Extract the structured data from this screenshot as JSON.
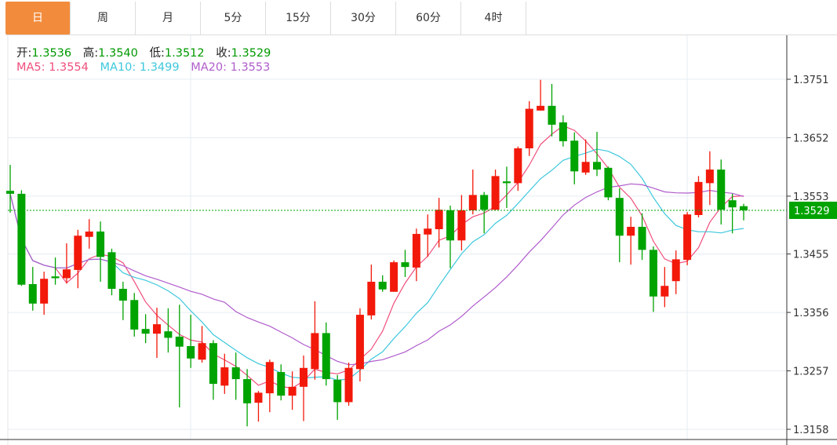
{
  "tabs": [
    {
      "label": "日",
      "active": true
    },
    {
      "label": "周"
    },
    {
      "label": "月"
    },
    {
      "label": "5分"
    },
    {
      "label": "15分"
    },
    {
      "label": "30分"
    },
    {
      "label": "60分"
    },
    {
      "label": "4时"
    }
  ],
  "ohlc_legend": {
    "open_label": "开:",
    "open": "1.3536",
    "high_label": "高:",
    "high": "1.3540",
    "low_label": "低:",
    "low": "1.3512",
    "close_label": "收:",
    "close": "1.3529"
  },
  "ma_legend": {
    "ma5": "MA5: 1.3554",
    "ma10": "MA10: 1.3499",
    "ma20": "MA20: 1.3553"
  },
  "colors": {
    "up": "#f2190a",
    "down": "#00a300",
    "ma5": "#ef4f7d",
    "ma10": "#3ec8dc",
    "ma20": "#b05ccc",
    "accent": "#f28c3c"
  },
  "chart_data": {
    "type": "candlestick",
    "title": "",
    "ylim": [
      1.3158,
      1.3751
    ],
    "y_ticks": [
      "1.3751",
      "1.3652",
      "1.3553",
      "1.3455",
      "1.3356",
      "1.3257",
      "1.3158"
    ],
    "current_price": "1.3529",
    "grid": true,
    "ma_periods": [
      5,
      10,
      20
    ],
    "candles": [
      [
        1.3562,
        1.3606,
        1.3525,
        1.3557
      ],
      [
        1.3557,
        1.3563,
        1.3401,
        1.3403
      ],
      [
        1.3404,
        1.3433,
        1.3359,
        1.3371
      ],
      [
        1.3371,
        1.3425,
        1.3352,
        1.3413
      ],
      [
        1.3417,
        1.3449,
        1.3403,
        1.3414
      ],
      [
        1.3414,
        1.3473,
        1.3405,
        1.3429
      ],
      [
        1.3428,
        1.3496,
        1.3397,
        1.3486
      ],
      [
        1.3484,
        1.3514,
        1.3464,
        1.3493
      ],
      [
        1.3493,
        1.351,
        1.3408,
        1.345
      ],
      [
        1.3458,
        1.3464,
        1.3385,
        1.3396
      ],
      [
        1.3396,
        1.3408,
        1.3343,
        1.3376
      ],
      [
        1.3377,
        1.3389,
        1.3315,
        1.3327
      ],
      [
        1.3328,
        1.3353,
        1.3304,
        1.332
      ],
      [
        1.332,
        1.3364,
        1.3279,
        1.3336
      ],
      [
        1.3324,
        1.3363,
        1.3288,
        1.3313
      ],
      [
        1.3315,
        1.3369,
        1.3195,
        1.3298
      ],
      [
        1.3299,
        1.3352,
        1.3262,
        1.3278
      ],
      [
        1.3276,
        1.3333,
        1.3271,
        1.3304
      ],
      [
        1.3304,
        1.3309,
        1.3208,
        1.3235
      ],
      [
        1.3232,
        1.3286,
        1.3218,
        1.3263
      ],
      [
        1.3263,
        1.3288,
        1.3208,
        1.3243
      ],
      [
        1.3243,
        1.326,
        1.3163,
        1.3202
      ],
      [
        1.3203,
        1.3223,
        1.3171,
        1.322
      ],
      [
        1.3219,
        1.3276,
        1.3187,
        1.3272
      ],
      [
        1.3255,
        1.3268,
        1.3207,
        1.3215
      ],
      [
        1.3215,
        1.3256,
        1.3191,
        1.323
      ],
      [
        1.323,
        1.3283,
        1.3172,
        1.3262
      ],
      [
        1.326,
        1.3375,
        1.3242,
        1.3321
      ],
      [
        1.3321,
        1.3339,
        1.3232,
        1.3243
      ],
      [
        1.3242,
        1.325,
        1.3174,
        1.3204
      ],
      [
        1.3204,
        1.3271,
        1.3198,
        1.3262
      ],
      [
        1.326,
        1.3363,
        1.3239,
        1.3352
      ],
      [
        1.3351,
        1.3437,
        1.3344,
        1.3408
      ],
      [
        1.3408,
        1.3419,
        1.3391,
        1.3395
      ],
      [
        1.3391,
        1.3444,
        1.3391,
        1.3441
      ],
      [
        1.3441,
        1.3462,
        1.3416,
        1.3433
      ],
      [
        1.3432,
        1.3498,
        1.3409,
        1.3489
      ],
      [
        1.3488,
        1.3522,
        1.345,
        1.3498
      ],
      [
        1.3497,
        1.355,
        1.3466,
        1.353
      ],
      [
        1.3529,
        1.3537,
        1.3431,
        1.3478
      ],
      [
        1.3478,
        1.3555,
        1.3461,
        1.3529
      ],
      [
        1.3529,
        1.3598,
        1.3522,
        1.3555
      ],
      [
        1.3555,
        1.356,
        1.349,
        1.353
      ],
      [
        1.353,
        1.3598,
        1.3529,
        1.3587
      ],
      [
        1.3578,
        1.3603,
        1.3533,
        1.3575
      ],
      [
        1.3575,
        1.3637,
        1.3562,
        1.3634
      ],
      [
        1.3634,
        1.3714,
        1.3621,
        1.3701
      ],
      [
        1.3698,
        1.375,
        1.3698,
        1.3706
      ],
      [
        1.3706,
        1.3743,
        1.3654,
        1.3674
      ],
      [
        1.3678,
        1.369,
        1.3637,
        1.3646
      ],
      [
        1.3647,
        1.3661,
        1.3573,
        1.3595
      ],
      [
        1.3593,
        1.3649,
        1.3589,
        1.3611
      ],
      [
        1.3611,
        1.3662,
        1.3587,
        1.3598
      ],
      [
        1.3601,
        1.3603,
        1.3546,
        1.3551
      ],
      [
        1.355,
        1.3566,
        1.3441,
        1.3486
      ],
      [
        1.3486,
        1.3518,
        1.3437,
        1.3501
      ],
      [
        1.3501,
        1.3524,
        1.3445,
        1.3462
      ],
      [
        1.3462,
        1.3468,
        1.3357,
        1.3383
      ],
      [
        1.3383,
        1.3433,
        1.3365,
        1.3401
      ],
      [
        1.3409,
        1.3461,
        1.3387,
        1.3446
      ],
      [
        1.3445,
        1.3526,
        1.3436,
        1.3522
      ],
      [
        1.3521,
        1.3587,
        1.3517,
        1.3577
      ],
      [
        1.3575,
        1.3629,
        1.3538,
        1.3598
      ],
      [
        1.3598,
        1.3615,
        1.3505,
        1.353
      ],
      [
        1.3546,
        1.3557,
        1.349,
        1.3534
      ],
      [
        1.3536,
        1.354,
        1.3512,
        1.3529
      ]
    ]
  }
}
